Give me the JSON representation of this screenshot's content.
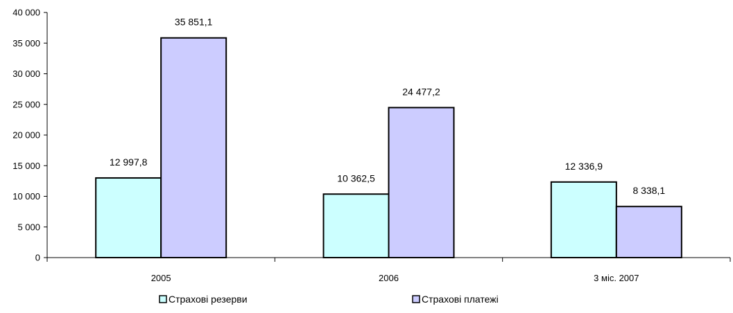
{
  "chart_data": {
    "type": "bar",
    "title": "",
    "xlabel": "",
    "ylabel": "",
    "categories": [
      "2005",
      "2006",
      "3 міс. 2007"
    ],
    "series": [
      {
        "name": "Страхові резерви",
        "values": [
          12997.8,
          10362.5,
          12336.9
        ],
        "labels": [
          "12 997,8",
          "10 362,5",
          "12 336,9"
        ],
        "color": "#ccffff"
      },
      {
        "name": "Страхові платежі",
        "values": [
          35851.1,
          24477.2,
          8338.1
        ],
        "labels": [
          "35 851,1",
          "24 477,2",
          "8 338,1"
        ],
        "color": "#ccccff"
      }
    ],
    "ylim": [
      0,
      40000
    ],
    "yticks": [
      0,
      5000,
      10000,
      15000,
      20000,
      25000,
      30000,
      35000,
      40000
    ],
    "ytick_labels": [
      "0",
      "5 000",
      "10 000",
      "15 000",
      "20 000",
      "25 000",
      "30 000",
      "35 000",
      "40 000"
    ],
    "grid": false,
    "legend_position": "bottom"
  }
}
